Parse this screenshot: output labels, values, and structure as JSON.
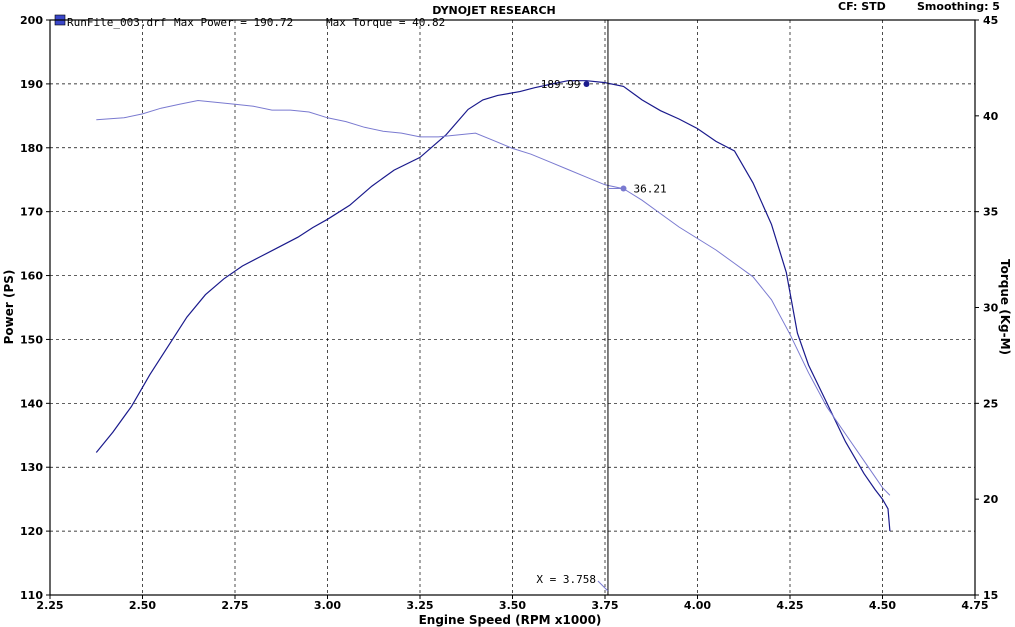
{
  "header": {
    "title": "DYNOJET RESEARCH",
    "cf_label": "CF: STD",
    "smoothing_label": "Smoothing: 5"
  },
  "legend": {
    "run_file": "RunFile_003.drf",
    "max_power_label": "Max Power = 190.72",
    "max_torque_label": "Max Torque = 40.82"
  },
  "colors": {
    "power": "#1a1a8c",
    "torque": "#7a7ad0",
    "grid": "#000000",
    "background": "#ffffff"
  },
  "chart_data": {
    "type": "line",
    "title": "DYNOJET RESEARCH",
    "xlabel": "Engine Speed (RPM x1000)",
    "ylabel": "Power (PS)",
    "y2label": "Torque (Kg-M)",
    "xlim": [
      2.25,
      4.75
    ],
    "ylim": [
      110,
      200
    ],
    "y2lim": [
      15,
      45
    ],
    "grid": true,
    "x_ticks": [
      "2.25",
      "2.50",
      "2.75",
      "3.00",
      "3.25",
      "3.50",
      "3.75",
      "4.00",
      "4.25",
      "4.50",
      "4.75"
    ],
    "y_ticks": [
      "110",
      "120",
      "130",
      "140",
      "150",
      "160",
      "170",
      "180",
      "190",
      "200"
    ],
    "y2_ticks": [
      "15",
      "20",
      "25",
      "30",
      "35",
      "40",
      "45"
    ],
    "series": [
      {
        "name": "Power",
        "axis": "left",
        "x": [
          2.375,
          2.42,
          2.47,
          2.52,
          2.57,
          2.62,
          2.67,
          2.72,
          2.77,
          2.82,
          2.87,
          2.92,
          2.96,
          3.0,
          3.06,
          3.12,
          3.18,
          3.25,
          3.32,
          3.38,
          3.42,
          3.46,
          3.52,
          3.56,
          3.6,
          3.65,
          3.7,
          3.75,
          3.8,
          3.85,
          3.9,
          3.95,
          4.0,
          4.05,
          4.1,
          4.15,
          4.2,
          4.24,
          4.27,
          4.3,
          4.35,
          4.4,
          4.45,
          4.48,
          4.5,
          4.515,
          4.52
        ],
        "values": [
          132.3,
          135.5,
          139.5,
          144.5,
          149.0,
          153.5,
          157.0,
          159.5,
          161.5,
          163.0,
          164.5,
          166.0,
          167.5,
          168.8,
          171.0,
          174.0,
          176.5,
          178.5,
          182.0,
          186.0,
          187.5,
          188.2,
          188.8,
          189.4,
          189.9,
          190.5,
          190.5,
          190.2,
          189.6,
          187.5,
          185.8,
          184.5,
          183.0,
          181.0,
          179.5,
          174.5,
          168.0,
          160.5,
          151.0,
          146.0,
          140.0,
          134.0,
          129.0,
          126.5,
          125.0,
          123.5,
          120.0
        ]
      },
      {
        "name": "Torque",
        "axis": "right",
        "x": [
          2.375,
          2.45,
          2.5,
          2.55,
          2.6,
          2.65,
          2.7,
          2.75,
          2.8,
          2.85,
          2.9,
          2.95,
          3.0,
          3.05,
          3.1,
          3.15,
          3.2,
          3.25,
          3.3,
          3.35,
          3.4,
          3.45,
          3.5,
          3.55,
          3.6,
          3.65,
          3.7,
          3.75,
          3.8,
          3.85,
          3.9,
          3.95,
          4.0,
          4.05,
          4.1,
          4.15,
          4.2,
          4.25,
          4.3,
          4.35,
          4.4,
          4.45,
          4.5,
          4.52
        ],
        "values": [
          39.8,
          39.9,
          40.1,
          40.4,
          40.6,
          40.8,
          40.7,
          40.6,
          40.5,
          40.3,
          40.3,
          40.2,
          39.9,
          39.7,
          39.4,
          39.2,
          39.1,
          38.9,
          38.9,
          39.0,
          39.1,
          38.7,
          38.3,
          38.0,
          37.6,
          37.2,
          36.8,
          36.4,
          36.2,
          35.6,
          34.9,
          34.2,
          33.6,
          33.0,
          32.3,
          31.6,
          30.4,
          28.6,
          26.6,
          24.8,
          23.4,
          22.0,
          20.6,
          20.2
        ]
      }
    ],
    "annotations": [
      {
        "label": "189.99",
        "x": 3.7,
        "y": 189.99,
        "axis": "left"
      },
      {
        "label": "36.21",
        "x": 3.8,
        "y": 36.21,
        "axis": "right"
      },
      {
        "label": "X = 3.758",
        "x": 3.758
      }
    ]
  }
}
